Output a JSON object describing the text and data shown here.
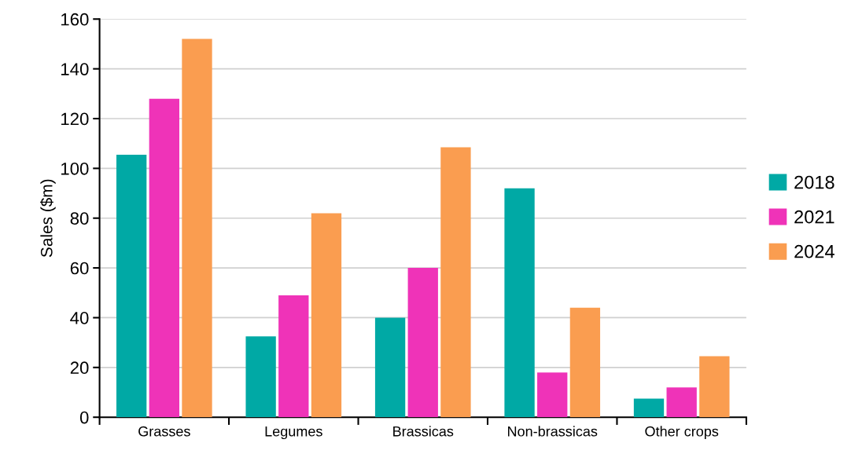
{
  "chart_data": {
    "type": "bar",
    "ylabel": "Sales ($m)",
    "categories": [
      "Grasses",
      "Legumes",
      "Brassicas",
      "Non-brassicas",
      "Other crops"
    ],
    "series": [
      {
        "name": "2018",
        "color": "#00a9a5",
        "values": [
          105.5,
          32.5,
          40,
          92,
          7.5
        ]
      },
      {
        "name": "2021",
        "color": "#ef33b8",
        "values": [
          128,
          49,
          60,
          18,
          12
        ]
      },
      {
        "name": "2024",
        "color": "#fa9d50",
        "values": [
          152,
          82,
          108.5,
          44,
          24.5
        ]
      }
    ],
    "ylim": [
      0,
      160
    ],
    "yticks": [
      0,
      20,
      40,
      60,
      80,
      100,
      120,
      140,
      160
    ],
    "grid": "y",
    "legend": "right"
  }
}
